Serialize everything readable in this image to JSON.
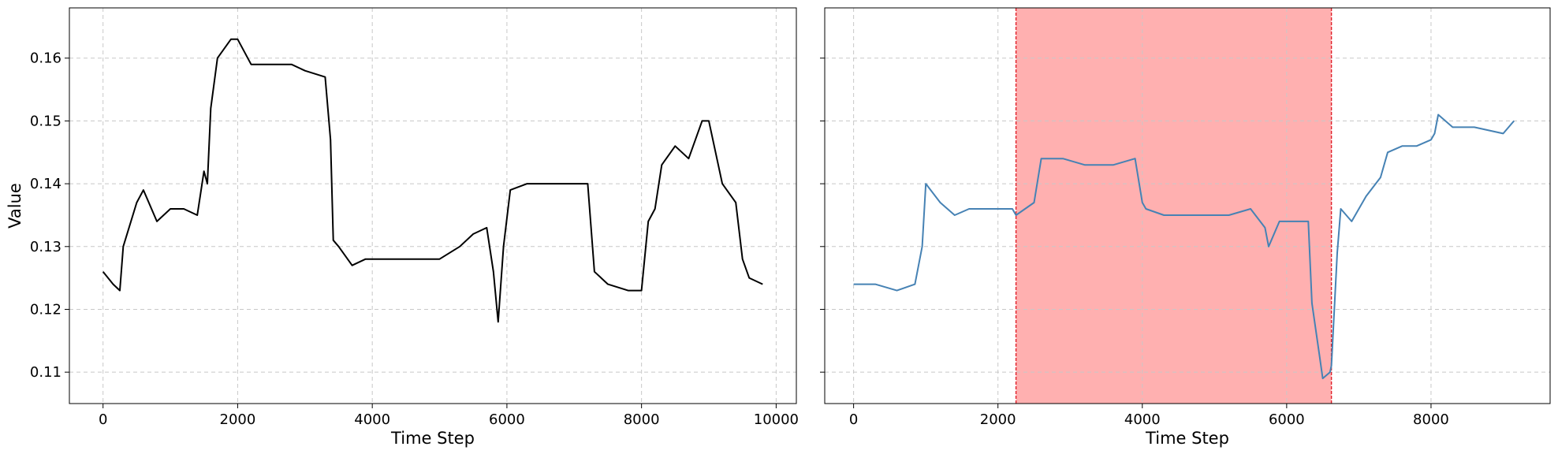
{
  "chart_data": [
    {
      "type": "line",
      "xlabel": "Time Step",
      "ylabel": "Value",
      "xlim": [
        -500,
        10300
      ],
      "ylim": [
        0.105,
        0.168
      ],
      "xticks": [
        0,
        2000,
        4000,
        6000,
        8000,
        10000
      ],
      "yticks": [
        0.11,
        0.12,
        0.13,
        0.14,
        0.15,
        0.16
      ],
      "grid": true,
      "line_color": "#000000",
      "series": [
        {
          "x": [
            0,
            150,
            250,
            300,
            500,
            600,
            800,
            1000,
            1200,
            1400,
            1500,
            1550,
            1600,
            1700,
            1900,
            2000,
            2200,
            2500,
            2800,
            3000,
            3300,
            3380,
            3420,
            3500,
            3700,
            3900,
            4200,
            4600,
            5000,
            5300,
            5500,
            5700,
            5800,
            5870,
            5950,
            6050,
            6300,
            6600,
            6900,
            7200,
            7300,
            7500,
            7800,
            8000,
            8100,
            8200,
            8300,
            8500,
            8700,
            8900,
            9000,
            9200,
            9400,
            9500,
            9600,
            9800
          ],
          "y": [
            0.126,
            0.124,
            0.123,
            0.13,
            0.137,
            0.139,
            0.134,
            0.136,
            0.136,
            0.135,
            0.142,
            0.14,
            0.152,
            0.16,
            0.163,
            0.163,
            0.159,
            0.159,
            0.159,
            0.158,
            0.157,
            0.147,
            0.131,
            0.13,
            0.127,
            0.128,
            0.128,
            0.128,
            0.128,
            0.13,
            0.132,
            0.133,
            0.126,
            0.118,
            0.13,
            0.139,
            0.14,
            0.14,
            0.14,
            0.14,
            0.126,
            0.124,
            0.123,
            0.123,
            0.134,
            0.136,
            0.143,
            0.146,
            0.144,
            0.15,
            0.15,
            0.14,
            0.137,
            0.128,
            0.125,
            0.124
          ]
        }
      ]
    },
    {
      "type": "line",
      "xlabel": "Time Step",
      "ylabel": "",
      "xlim": [
        -400,
        9650
      ],
      "ylim": [
        0.105,
        0.168
      ],
      "xticks": [
        0,
        2000,
        4000,
        6000,
        8000
      ],
      "yticks": [
        0.11,
        0.12,
        0.13,
        0.14,
        0.15,
        0.16
      ],
      "grid": true,
      "line_color": "#4682b4",
      "highlight": {
        "x_start": 2250,
        "x_end": 6620,
        "fill_color": "#ffb0b0",
        "edge_color": "#e0202a"
      },
      "series": [
        {
          "x": [
            0,
            300,
            600,
            850,
            950,
            1000,
            1200,
            1400,
            1600,
            1800,
            2000,
            2200,
            2250,
            2500,
            2600,
            2700,
            2900,
            3200,
            3600,
            3900,
            4000,
            4050,
            4300,
            4700,
            5200,
            5500,
            5700,
            5750,
            5900,
            6200,
            6300,
            6350,
            6450,
            6500,
            6600,
            6620,
            6700,
            6750,
            6900,
            7100,
            7300,
            7400,
            7600,
            7800,
            8000,
            8050,
            8100,
            8300,
            8600,
            9000,
            9150
          ],
          "y": [
            0.124,
            0.124,
            0.123,
            0.124,
            0.13,
            0.14,
            0.137,
            0.135,
            0.136,
            0.136,
            0.136,
            0.136,
            0.135,
            0.137,
            0.144,
            0.144,
            0.144,
            0.143,
            0.143,
            0.144,
            0.137,
            0.136,
            0.135,
            0.135,
            0.135,
            0.136,
            0.133,
            0.13,
            0.134,
            0.134,
            0.134,
            0.121,
            0.113,
            0.109,
            0.11,
            0.111,
            0.129,
            0.136,
            0.134,
            0.138,
            0.141,
            0.145,
            0.146,
            0.146,
            0.147,
            0.148,
            0.151,
            0.149,
            0.149,
            0.148,
            0.15
          ]
        }
      ]
    }
  ]
}
